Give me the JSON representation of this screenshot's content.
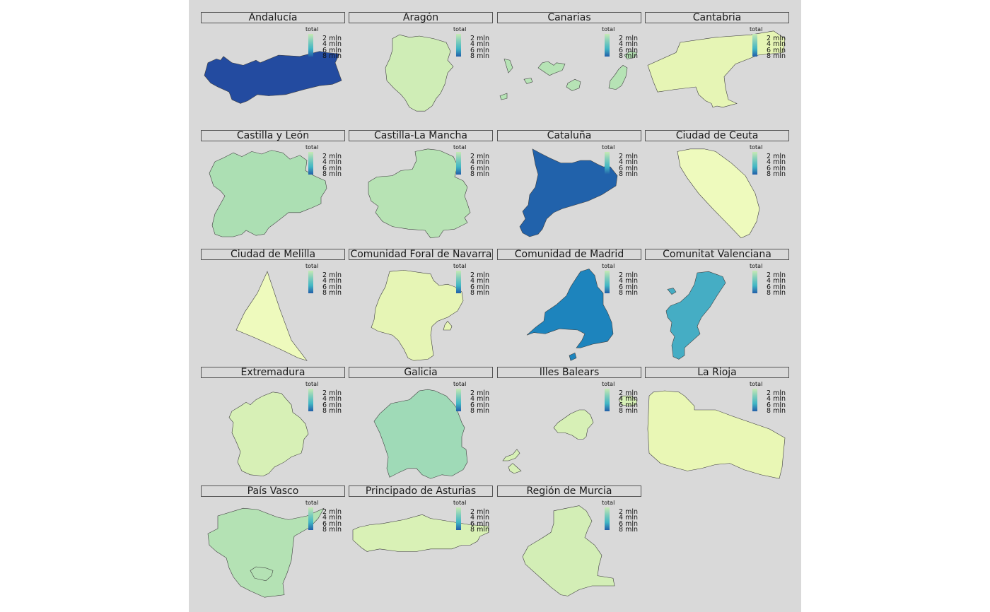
{
  "legend": {
    "title": "total",
    "labels": [
      "2 mln",
      "4 mln",
      "6 mln",
      "8 mln"
    ]
  },
  "regions": [
    {
      "name": "Andalucía",
      "fill": "#234ba0"
    },
    {
      "name": "Aragón",
      "fill": "#cfedb6"
    },
    {
      "name": "Canarias",
      "fill": "#b6e3b5"
    },
    {
      "name": "Cantabria",
      "fill": "#e6f5b5"
    },
    {
      "name": "Castilla y León",
      "fill": "#acdfb3"
    },
    {
      "name": "Castilla-La Mancha",
      "fill": "#b7e3b4"
    },
    {
      "name": "Cataluña",
      "fill": "#2162ab"
    },
    {
      "name": "Ciudad de Ceuta",
      "fill": "#eefabd"
    },
    {
      "name": "Ciudad de Melilla",
      "fill": "#eefabd"
    },
    {
      "name": "Comunidad Foral de Navarra",
      "fill": "#e6f5b5"
    },
    {
      "name": "Comunidad de Madrid",
      "fill": "#1d84bd"
    },
    {
      "name": "Comunitat Valenciana",
      "fill": "#45adc4"
    },
    {
      "name": "Extremadura",
      "fill": "#d7f0b6"
    },
    {
      "name": "Galicia",
      "fill": "#9fdab7"
    },
    {
      "name": "Illes Balears",
      "fill": "#d7f0b6"
    },
    {
      "name": "La Rioja",
      "fill": "#e9f7b5"
    },
    {
      "name": "País Vasco",
      "fill": "#b4e2b4"
    },
    {
      "name": "Principado de Asturias",
      "fill": "#d9f1b6"
    },
    {
      "name": "Región de Murcia",
      "fill": "#d3eeb6"
    }
  ]
}
